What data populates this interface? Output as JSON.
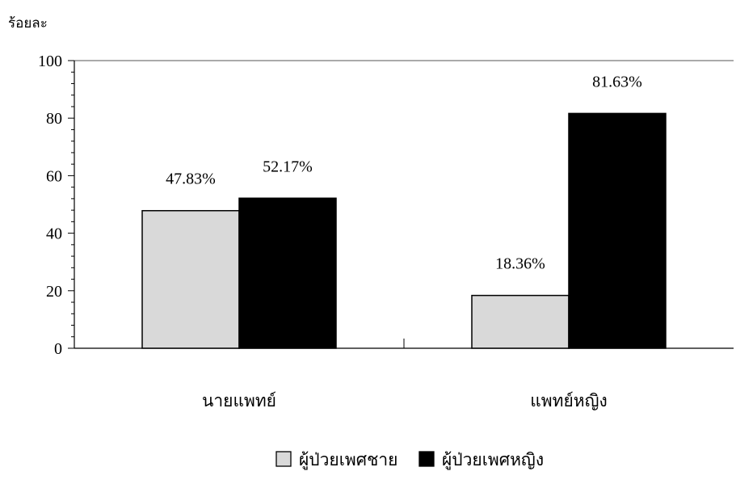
{
  "chart_data": {
    "type": "bar",
    "categories": [
      "นายแพทย์",
      "แพทย์หญิง"
    ],
    "series": [
      {
        "name": "ผู้ป่วยเพศชาย",
        "values": [
          47.83,
          18.36
        ],
        "labels": [
          "47.83%",
          "18.36%"
        ],
        "color": "#d9d9d9"
      },
      {
        "name": "ผู้ป่วยเพศหญิง",
        "values": [
          52.17,
          81.63
        ],
        "labels": [
          "52.17%",
          "81.63%"
        ],
        "color": "#000000"
      }
    ],
    "ylabel": "ร้อยละ",
    "ylim": [
      0,
      100
    ],
    "yticks": [
      0,
      20,
      40,
      60,
      80,
      100
    ],
    "legend": "bottom-center",
    "grid": false
  }
}
